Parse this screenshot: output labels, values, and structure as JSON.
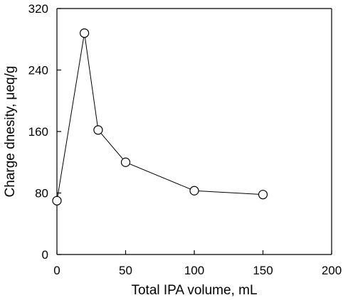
{
  "chart_data": {
    "type": "line",
    "title": "",
    "xlabel": "Total IPA volume, mL",
    "ylabel": "Charge dnesity, μeq/g",
    "xlim": [
      0,
      200
    ],
    "ylim": [
      0,
      320
    ],
    "xticks": [
      0,
      50,
      100,
      150,
      200
    ],
    "yticks": [
      0,
      80,
      160,
      240,
      320
    ],
    "xtick_labels": [
      "0",
      "50",
      "100",
      "150",
      "200"
    ],
    "ytick_labels": [
      "0",
      "80",
      "160",
      "240",
      "320"
    ],
    "grid": false,
    "legend": "none",
    "series": [
      {
        "marker": "open-circle",
        "color": "#000000",
        "x": [
          0,
          20,
          30,
          50,
          100,
          150
        ],
        "y": [
          70,
          288,
          162,
          120,
          83,
          78
        ]
      }
    ]
  }
}
